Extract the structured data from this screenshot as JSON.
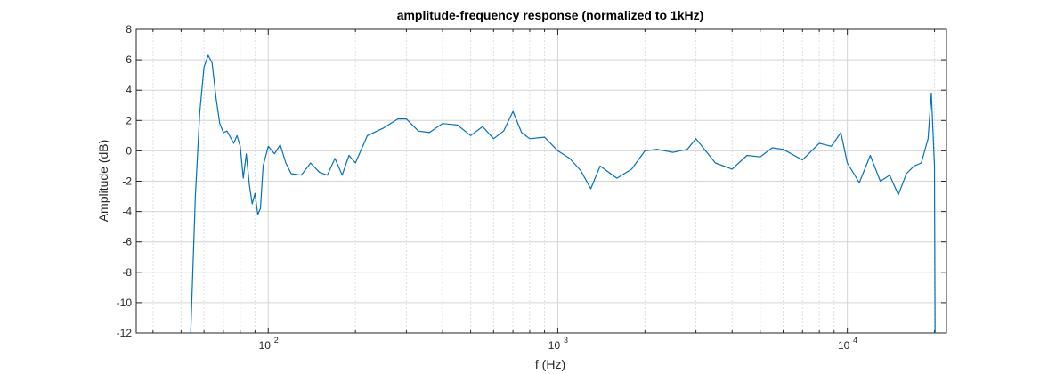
{
  "chart_data": {
    "type": "line",
    "title": "amplitude-frequency response (normalized to 1kHz)",
    "xlabel": "f (Hz)",
    "ylabel": "Amplitude (dB)",
    "x_scale": "log",
    "xlim": [
      35,
      22000
    ],
    "ylim": [
      -12,
      8
    ],
    "grid": true,
    "minor_grid_x": true,
    "y_ticks": [
      8,
      6,
      4,
      2,
      0,
      -2,
      -4,
      -6,
      -8,
      -10,
      -12
    ],
    "y_tick_labels": [
      "8",
      "6",
      "4",
      "2",
      "0",
      "-2",
      "-4",
      "-6",
      "-8",
      "-10",
      "-12"
    ],
    "x_ticks": [
      100,
      1000,
      10000
    ],
    "x_tick_labels": [
      {
        "base": "10",
        "exp": "2"
      },
      {
        "base": "10",
        "exp": "3"
      },
      {
        "base": "10",
        "exp": "4"
      }
    ],
    "line_color": "#0072BD",
    "series": [
      {
        "x": [
          54,
          56,
          58,
          60,
          62,
          64,
          66,
          68,
          70,
          72,
          74,
          76,
          78,
          80,
          82,
          84,
          86,
          88,
          90,
          92,
          94,
          96,
          100,
          105,
          110,
          115,
          120,
          130,
          140,
          150,
          160,
          170,
          180,
          190,
          200,
          220,
          250,
          280,
          300,
          330,
          360,
          400,
          450,
          500,
          550,
          600,
          650,
          700,
          750,
          800,
          900,
          1000,
          1100,
          1200,
          1300,
          1400,
          1600,
          1800,
          2000,
          2200,
          2500,
          2800,
          3000,
          3500,
          4000,
          4500,
          5000,
          5500,
          6000,
          7000,
          8000,
          8800,
          9500,
          10000,
          11000,
          12000,
          13000,
          14000,
          15000,
          16000,
          17000,
          18000,
          19000,
          19500,
          20000,
          20100,
          20200
        ],
        "y": [
          -12,
          -3,
          2.5,
          5.5,
          6.3,
          5.8,
          3.5,
          1.8,
          1.2,
          1.3,
          0.9,
          0.5,
          1.0,
          0.3,
          -1.8,
          -0.2,
          -2.2,
          -3.5,
          -2.8,
          -4.2,
          -3.8,
          -1.0,
          0.3,
          -0.2,
          0.4,
          -0.8,
          -1.5,
          -1.6,
          -0.8,
          -1.4,
          -1.6,
          -0.5,
          -1.6,
          -0.3,
          -0.8,
          1.0,
          1.5,
          2.1,
          2.1,
          1.3,
          1.2,
          1.8,
          1.7,
          1.0,
          1.6,
          0.8,
          1.3,
          2.6,
          1.2,
          0.8,
          0.9,
          0.0,
          -0.5,
          -1.3,
          -2.5,
          -1.0,
          -1.8,
          -1.2,
          0.0,
          0.1,
          -0.1,
          0.1,
          0.8,
          -0.8,
          -1.2,
          -0.3,
          -0.4,
          0.2,
          0.1,
          -0.6,
          0.5,
          0.3,
          1.2,
          -0.8,
          -2.1,
          -0.3,
          -2.0,
          -1.6,
          -2.9,
          -1.5,
          -1.0,
          -0.8,
          0.8,
          3.8,
          -1.0,
          -12,
          -12
        ]
      }
    ]
  }
}
